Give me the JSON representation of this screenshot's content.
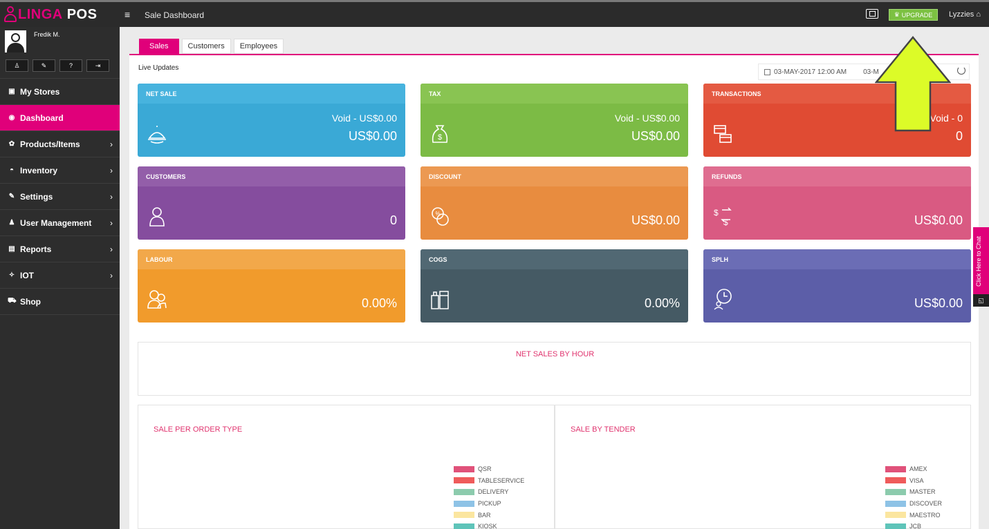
{
  "app": {
    "logo_part1": "LINGA",
    "logo_part2": "POS",
    "page_heading": "Sale Dashboard",
    "upgrade_label": "UPGRADE",
    "username": "Lyzzies"
  },
  "profile": {
    "name": "Fredik M."
  },
  "nav": [
    {
      "label": "My Stores",
      "icon": "store-icon",
      "chevron": false,
      "active": false
    },
    {
      "label": "Dashboard",
      "icon": "dashboard-icon",
      "chevron": false,
      "active": true
    },
    {
      "label": "Products/Items",
      "icon": "gift-icon",
      "chevron": true,
      "active": false
    },
    {
      "label": "Inventory",
      "icon": "basket-icon",
      "chevron": true,
      "active": false
    },
    {
      "label": "Settings",
      "icon": "wrench-icon",
      "chevron": true,
      "active": false
    },
    {
      "label": "User Management",
      "icon": "users-icon",
      "chevron": true,
      "active": false
    },
    {
      "label": "Reports",
      "icon": "report-icon",
      "chevron": true,
      "active": false
    },
    {
      "label": "IOT",
      "icon": "iot-icon",
      "chevron": true,
      "active": false
    },
    {
      "label": "Shop",
      "icon": "cart-icon",
      "chevron": false,
      "active": false
    }
  ],
  "tabs": [
    "Sales",
    "Customers",
    "Employees"
  ],
  "live_updates": "Live Updates",
  "date_range": {
    "start": "03-MAY-2017 12:00 AM",
    "end": "03-M"
  },
  "cards": [
    {
      "title": "NET SALE",
      "void": "Void - US$0.00",
      "value": "US$0.00",
      "icon": "serving-tray-icon",
      "color": "#3aa9d6",
      "head": "#47b3de"
    },
    {
      "title": "TAX",
      "void": "Void - US$0.00",
      "value": "US$0.00",
      "icon": "money-bag-icon",
      "color": "#7cbb45",
      "head": "#89c452"
    },
    {
      "title": "TRANSACTIONS",
      "void": "Void - 0",
      "value": "0",
      "icon": "card-transfer-icon",
      "color": "#e04b33",
      "head": "#e45a42"
    },
    {
      "title": "CUSTOMERS",
      "void": "",
      "value": "0",
      "icon": "customer-icon",
      "color": "#854d9e",
      "head": "#935ea9"
    },
    {
      "title": "DISCOUNT",
      "void": "",
      "value": "US$0.00",
      "icon": "discount-coins-icon",
      "color": "#e88c3f",
      "head": "#ec9952"
    },
    {
      "title": "REFUNDS",
      "void": "",
      "value": "US$0.00",
      "icon": "refund-icon",
      "color": "#d95a82",
      "head": "#df6d90"
    },
    {
      "title": "LABOUR",
      "void": "",
      "value": "0.00%",
      "icon": "labour-icon",
      "color": "#f19b2c",
      "head": "#f2a84a"
    },
    {
      "title": "COGS",
      "void": "",
      "value": "0.00%",
      "icon": "cogs-icon",
      "color": "#455a64",
      "head": "#516873"
    },
    {
      "title": "SPLH",
      "void": "",
      "value": "US$0.00",
      "icon": "clock-people-icon",
      "color": "#5c5ea8",
      "head": "#6b6db5"
    }
  ],
  "charts": {
    "net_sales_by_hour": "NET SALES BY HOUR",
    "sale_per_order_type": {
      "title": "SALE PER ORDER TYPE",
      "legend": [
        {
          "label": "QSR",
          "color": "#e0527a"
        },
        {
          "label": "TABLESERVICE",
          "color": "#ef5b5b"
        },
        {
          "label": "DELIVERY",
          "color": "#8ccbad"
        },
        {
          "label": "PICKUP",
          "color": "#8ec3e6"
        },
        {
          "label": "BAR",
          "color": "#fbe6a0"
        },
        {
          "label": "KIOSK",
          "color": "#5fc4b9"
        }
      ]
    },
    "sale_by_tender": {
      "title": "SALE BY TENDER",
      "legend": [
        {
          "label": "AMEX",
          "color": "#e0527a"
        },
        {
          "label": "VISA",
          "color": "#ef5b5b"
        },
        {
          "label": "MASTER",
          "color": "#8ccbad"
        },
        {
          "label": "DISCOVER",
          "color": "#8ec3e6"
        },
        {
          "label": "MAESTRO",
          "color": "#fbe6a0"
        },
        {
          "label": "JCB",
          "color": "#5fc4b9"
        }
      ]
    }
  },
  "chat": {
    "label": "Click Here to Chat"
  }
}
